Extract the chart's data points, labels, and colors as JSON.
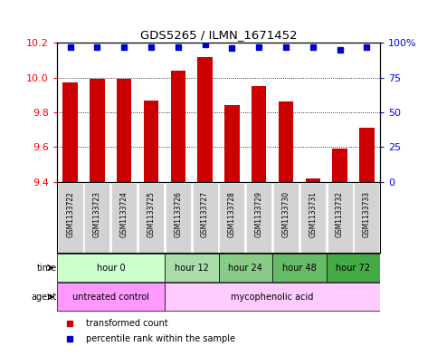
{
  "title": "GDS5265 / ILMN_1671452",
  "samples": [
    "GSM1133722",
    "GSM1133723",
    "GSM1133724",
    "GSM1133725",
    "GSM1133726",
    "GSM1133727",
    "GSM1133728",
    "GSM1133729",
    "GSM1133730",
    "GSM1133731",
    "GSM1133732",
    "GSM1133733"
  ],
  "bar_values": [
    9.97,
    9.99,
    9.99,
    9.87,
    10.04,
    10.12,
    9.84,
    9.95,
    9.86,
    9.42,
    9.59,
    9.71
  ],
  "percentile_values": [
    97,
    97,
    97,
    97,
    97,
    99,
    96,
    97,
    97,
    97,
    95,
    97
  ],
  "bar_color": "#cc0000",
  "percentile_color": "#0000cc",
  "ylim_left": [
    9.4,
    10.2
  ],
  "ylim_right": [
    0,
    100
  ],
  "yticks_left": [
    9.4,
    9.6,
    9.8,
    10.0,
    10.2
  ],
  "yticks_right": [
    0,
    25,
    50,
    75,
    100
  ],
  "ytick_labels_right": [
    "0",
    "25",
    "50",
    "75",
    "100%"
  ],
  "time_groups": [
    {
      "label": "hour 0",
      "start": 0,
      "end": 4,
      "color": "#ccffcc"
    },
    {
      "label": "hour 12",
      "start": 4,
      "end": 6,
      "color": "#aaddaa"
    },
    {
      "label": "hour 24",
      "start": 6,
      "end": 8,
      "color": "#88cc88"
    },
    {
      "label": "hour 48",
      "start": 8,
      "end": 10,
      "color": "#66bb66"
    },
    {
      "label": "hour 72",
      "start": 10,
      "end": 12,
      "color": "#44aa44"
    }
  ],
  "agent_groups": [
    {
      "label": "untreated control",
      "start": 0,
      "end": 4,
      "color": "#ff99ff"
    },
    {
      "label": "mycophenolic acid",
      "start": 4,
      "end": 12,
      "color": "#ffccff"
    }
  ],
  "legend_items": [
    {
      "color": "#cc0000",
      "label": "transformed count"
    },
    {
      "color": "#0000cc",
      "label": "percentile rank within the sample"
    }
  ],
  "bar_width": 0.55,
  "background_color": "#ffffff",
  "plot_bg_color": "#ffffff",
  "gridline_ticks": [
    9.6,
    9.8,
    10.0
  ]
}
